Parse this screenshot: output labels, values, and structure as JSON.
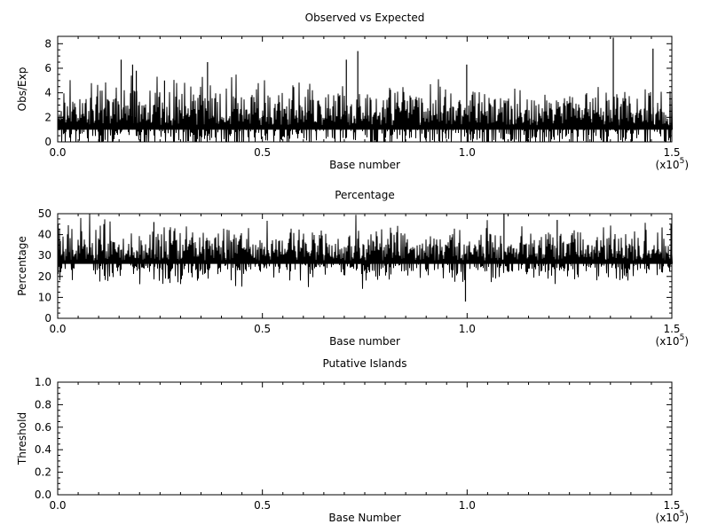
{
  "chart_data": [
    {
      "type": "line",
      "title": "Observed vs Expected",
      "xlabel": "Base number",
      "ylabel": "Obs/Exp",
      "x_multiplier_label": "(x10",
      "x_multiplier_exp": "5",
      "xlim": [
        0,
        150000
      ],
      "ylim": [
        0,
        8.6
      ],
      "x_ticks": [
        0,
        50000,
        100000,
        150000
      ],
      "x_tick_labels": [
        "0.0",
        "0.5",
        "1.0",
        "1.5"
      ],
      "y_ticks": [
        0,
        2,
        4,
        6,
        8
      ],
      "y_tick_labels": [
        "0",
        "2",
        "4",
        "6",
        "8"
      ],
      "series": [
        {
          "window_bases": 10,
          "baseline": 1.0,
          "spread": 1.15,
          "min": 0,
          "max": 8.6,
          "spikes": [
            {
              "x": 15500,
              "y": 6.7
            },
            {
              "x": 18300,
              "y": 6.3
            },
            {
              "x": 19200,
              "y": 5.8
            },
            {
              "x": 26100,
              "y": 5.0
            },
            {
              "x": 36600,
              "y": 6.5
            },
            {
              "x": 70500,
              "y": 6.7
            },
            {
              "x": 73300,
              "y": 7.4
            },
            {
              "x": 99900,
              "y": 6.3
            },
            {
              "x": 135700,
              "y": 8.5
            },
            {
              "x": 145400,
              "y": 7.6
            }
          ]
        }
      ],
      "grid": false
    },
    {
      "type": "line",
      "title": "Percentage",
      "xlabel": "Base number",
      "ylabel": "Percentage",
      "x_multiplier_label": "(x10",
      "x_multiplier_exp": "5",
      "xlim": [
        0,
        150000
      ],
      "ylim": [
        0,
        50
      ],
      "x_ticks": [
        0,
        50000,
        100000,
        150000
      ],
      "x_tick_labels": [
        "0.0",
        "0.5",
        "1.0",
        "1.5"
      ],
      "y_ticks": [
        0,
        10,
        20,
        30,
        40,
        50
      ],
      "y_tick_labels": [
        "0",
        "10",
        "20",
        "30",
        "40",
        "50"
      ],
      "series": [
        {
          "window_bases": 10,
          "baseline": 26,
          "spread": 5.5,
          "min": 8,
          "max": 50,
          "spikes": [
            {
              "x": 100,
              "y": 45
            },
            {
              "x": 23500,
              "y": 46
            },
            {
              "x": 99600,
              "y": 8
            },
            {
              "x": 109000,
              "y": 50
            },
            {
              "x": 122000,
              "y": 47
            },
            {
              "x": 149800,
              "y": 45
            }
          ]
        }
      ],
      "grid": false
    },
    {
      "type": "line",
      "title": "Putative Islands",
      "xlabel": "Base Number",
      "ylabel": "Threshold",
      "x_multiplier_label": "(x10",
      "x_multiplier_exp": "5",
      "xlim": [
        0,
        150000
      ],
      "ylim": [
        0,
        1.0
      ],
      "x_ticks": [
        0,
        50000,
        100000,
        150000
      ],
      "x_tick_labels": [
        "0.0",
        "0.5",
        "1.0",
        "1.5"
      ],
      "y_ticks": [
        0,
        0.2,
        0.4,
        0.6,
        0.8,
        1.0
      ],
      "y_tick_labels": [
        "0.0",
        "0.2",
        "0.4",
        "0.6",
        "0.8",
        "1.0"
      ],
      "series": [],
      "grid": false
    }
  ]
}
